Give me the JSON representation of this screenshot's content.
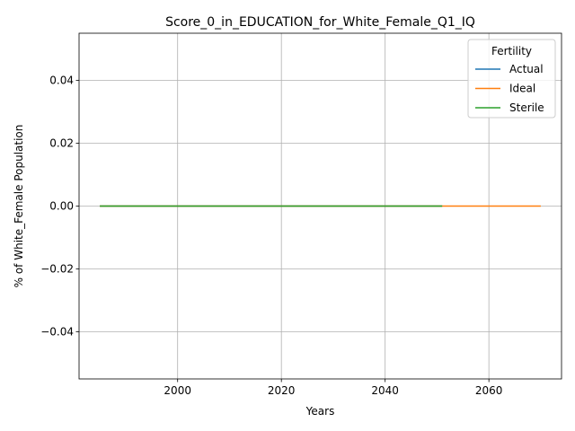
{
  "chart_data": {
    "type": "line",
    "title": "Score_0_in_EDUCATION_for_White_Female_Q1_IQ",
    "xlabel": "Years",
    "ylabel": "% of White_Female Population",
    "xlim": [
      1981,
      2074
    ],
    "ylim": [
      -0.055,
      0.055
    ],
    "xticks": [
      2000,
      2020,
      2040,
      2060
    ],
    "yticks": [
      -0.04,
      -0.02,
      0.0,
      0.02,
      0.04
    ],
    "ytick_labels": [
      "−0.04",
      "−0.02",
      "0.00",
      "0.02",
      "0.04"
    ],
    "grid": true,
    "legend": {
      "title": "Fertility",
      "placement": "top-right"
    },
    "series": [
      {
        "name": "Actual",
        "color": "#1f77b4",
        "x": [
          1985,
          2051
        ],
        "y": [
          0,
          0
        ]
      },
      {
        "name": "Ideal",
        "color": "#ff7f0e",
        "x": [
          1985,
          2070
        ],
        "y": [
          0,
          0
        ]
      },
      {
        "name": "Sterile",
        "color": "#2ca02c",
        "x": [
          1985,
          2051
        ],
        "y": [
          0,
          0
        ]
      }
    ]
  }
}
